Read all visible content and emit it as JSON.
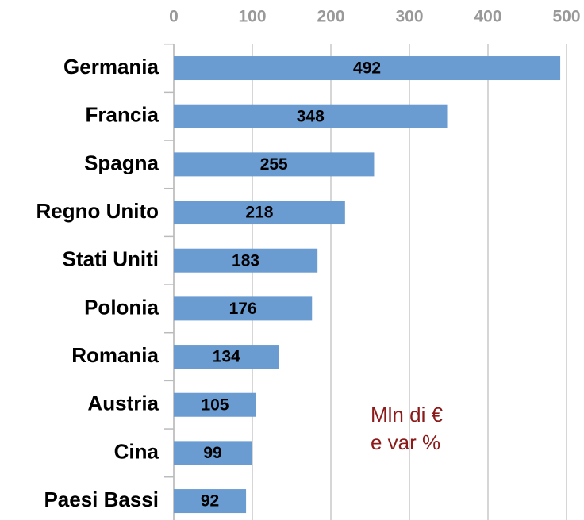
{
  "chart_data": {
    "type": "bar",
    "orientation": "horizontal",
    "categories": [
      "Germania",
      "Francia",
      "Spagna",
      "Regno Unito",
      "Stati Uniti",
      "Polonia",
      "Romania",
      "Austria",
      "Cina",
      "Paesi Bassi"
    ],
    "values": [
      492,
      348,
      255,
      218,
      183,
      176,
      134,
      105,
      99,
      92
    ],
    "color": "#6a9bd1",
    "xlim": [
      0,
      500
    ],
    "xticks": [
      0,
      100,
      200,
      300,
      400,
      500
    ],
    "grid": true,
    "annotation": [
      "Mln di €",
      "e var %"
    ]
  }
}
